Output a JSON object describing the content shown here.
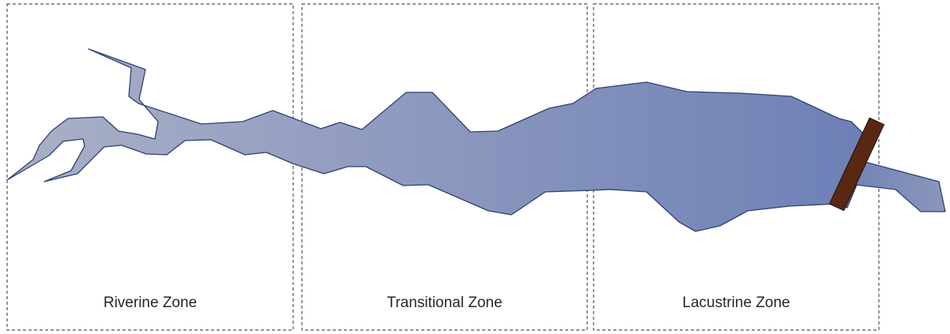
{
  "zones": [
    {
      "name": "Riverine Zone"
    },
    {
      "name": "Transitional Zone"
    },
    {
      "name": "Lacustrine Zone"
    }
  ],
  "colors": {
    "water_light": "#aab0c6",
    "water_dark": "#6d80b6",
    "outline": "#2f3f73",
    "dam": "#5a2812",
    "zone_border": "#44546a"
  }
}
